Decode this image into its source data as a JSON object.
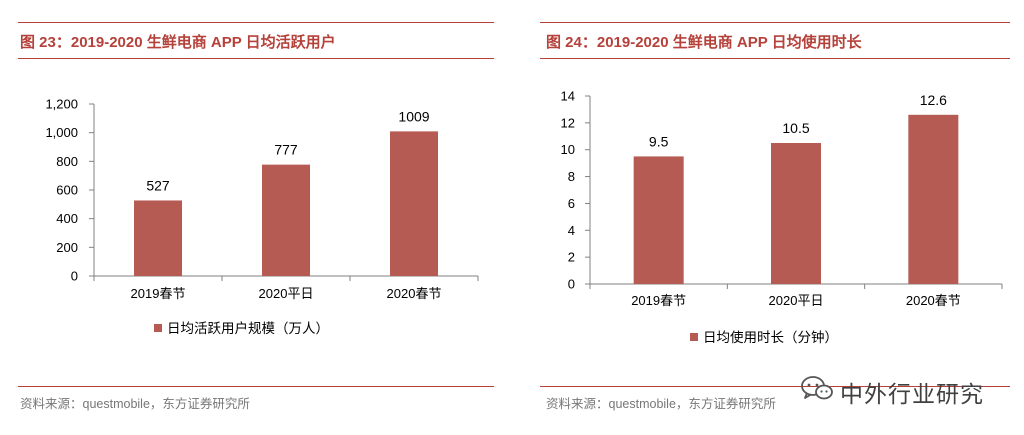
{
  "colors": {
    "accent": "#b5413a",
    "bar": "#b65a54",
    "axis": "#808080",
    "source": "#777777"
  },
  "watermark": {
    "text": "中外行业研究",
    "icon": "wechat-icon"
  },
  "chart_data": [
    {
      "type": "bar",
      "title": "图 23：2019-2020 生鲜电商 APP 日均活跃用户",
      "categories": [
        "2019春节",
        "2020平日",
        "2020春节"
      ],
      "series": [
        {
          "name": "日均活跃用户规模（万人）",
          "values": [
            527,
            777,
            1009
          ]
        }
      ],
      "data_labels": [
        "527",
        "777",
        "1009"
      ],
      "ylim": [
        0,
        1200
      ],
      "yticks": [
        0,
        200,
        400,
        600,
        800,
        1000,
        1200
      ],
      "ytick_labels": [
        "0",
        "200",
        "400",
        "600",
        "800",
        "1,000",
        "1,200"
      ],
      "xlabel": "",
      "ylabel": "",
      "grid": false,
      "legend_position": "bottom",
      "source": "资料来源：questmobile，东方证券研究所"
    },
    {
      "type": "bar",
      "title": "图 24：2019-2020 生鲜电商 APP 日均使用时长",
      "categories": [
        "2019春节",
        "2020平日",
        "2020春节"
      ],
      "series": [
        {
          "name": "日均使用时长（分钟）",
          "values": [
            9.5,
            10.5,
            12.6
          ]
        }
      ],
      "data_labels": [
        "9.5",
        "10.5",
        "12.6"
      ],
      "ylim": [
        0,
        14
      ],
      "yticks": [
        0,
        2,
        4,
        6,
        8,
        10,
        12,
        14
      ],
      "ytick_labels": [
        "0",
        "2",
        "4",
        "6",
        "8",
        "10",
        "12",
        "14"
      ],
      "xlabel": "",
      "ylabel": "",
      "grid": false,
      "legend_position": "bottom",
      "source": "资料来源：questmobile，东方证券研究所"
    }
  ]
}
